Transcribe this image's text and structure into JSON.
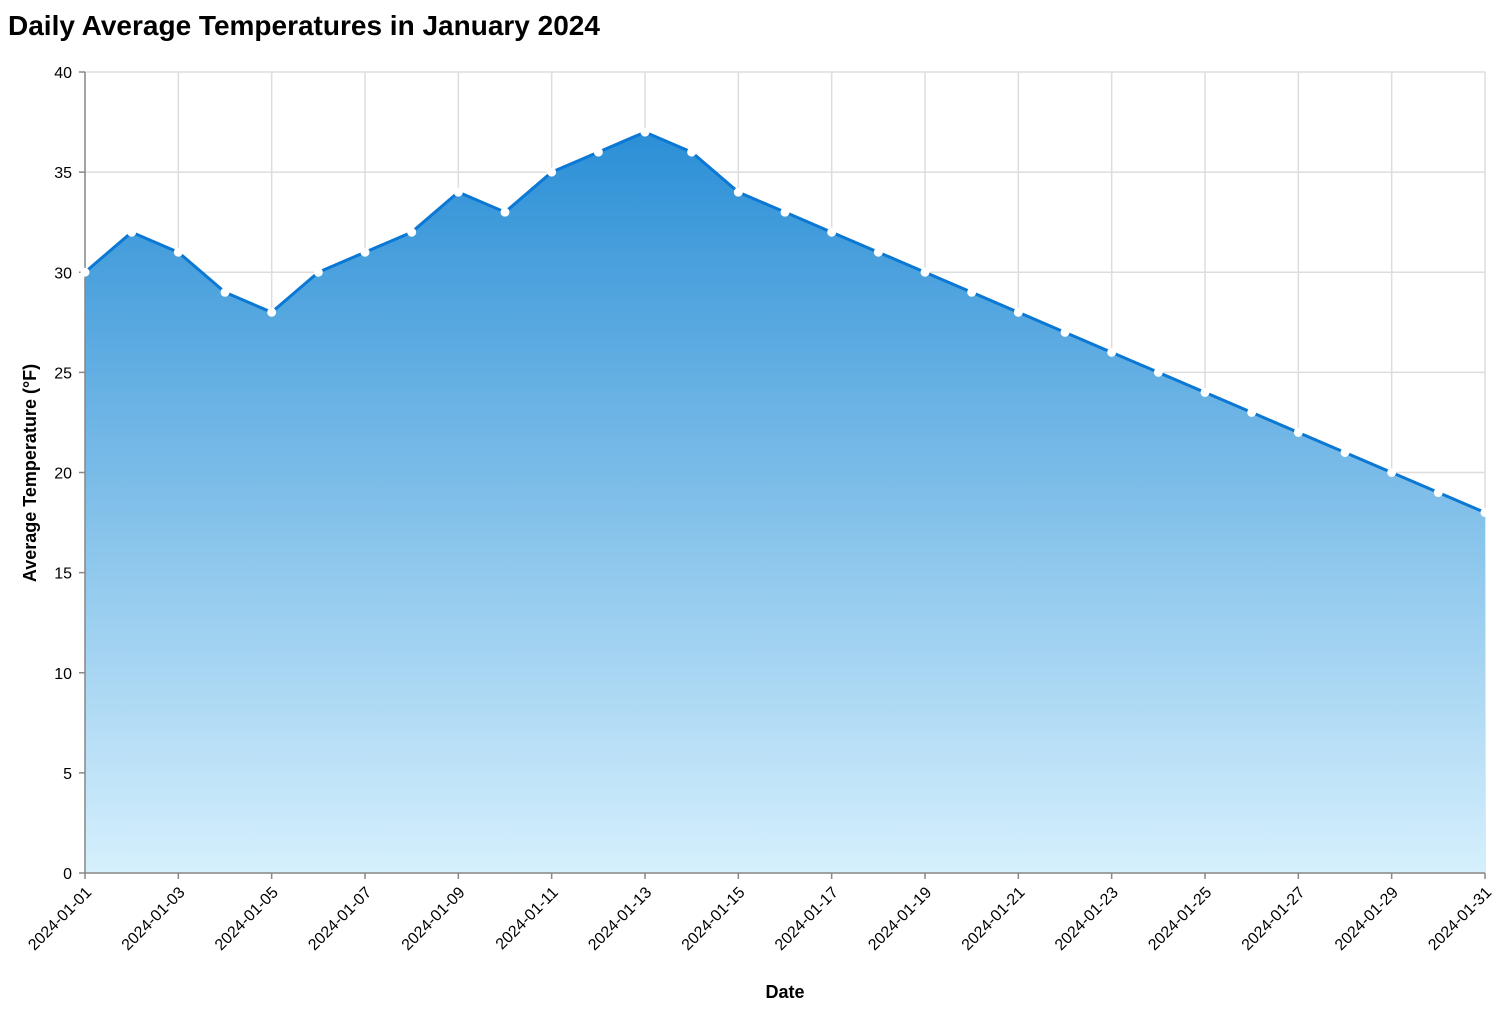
{
  "chart_data": {
    "type": "area",
    "title": "Daily Average Temperatures in January 2024",
    "xlabel": "Date",
    "ylabel": "Average Temperature (°F)",
    "ylim": [
      0,
      40
    ],
    "yticks": [
      0,
      5,
      10,
      15,
      20,
      25,
      30,
      35,
      40
    ],
    "xlim": [
      "2024-01-01",
      "2024-01-31"
    ],
    "xticks": [
      "2024-01-01",
      "2024-01-03",
      "2024-01-05",
      "2024-01-07",
      "2024-01-09",
      "2024-01-11",
      "2024-01-13",
      "2024-01-15",
      "2024-01-17",
      "2024-01-19",
      "2024-01-21",
      "2024-01-23",
      "2024-01-25",
      "2024-01-27",
      "2024-01-29",
      "2024-01-31"
    ],
    "grid": true,
    "colors": {
      "line": "#0a78d4",
      "fill_top": "#2b8fd6",
      "fill_bottom": "#d6f0fd",
      "point": "#ffffff"
    },
    "x": [
      "2024-01-01",
      "2024-01-02",
      "2024-01-03",
      "2024-01-04",
      "2024-01-05",
      "2024-01-06",
      "2024-01-07",
      "2024-01-08",
      "2024-01-09",
      "2024-01-10",
      "2024-01-11",
      "2024-01-12",
      "2024-01-13",
      "2024-01-14",
      "2024-01-15",
      "2024-01-16",
      "2024-01-17",
      "2024-01-18",
      "2024-01-19",
      "2024-01-20",
      "2024-01-21",
      "2024-01-22",
      "2024-01-23",
      "2024-01-24",
      "2024-01-25",
      "2024-01-26",
      "2024-01-27",
      "2024-01-28",
      "2024-01-29",
      "2024-01-30",
      "2024-01-31"
    ],
    "values": [
      30,
      32,
      31,
      29,
      28,
      30,
      31,
      32,
      34,
      33,
      35,
      36,
      37,
      36,
      34,
      33,
      32,
      31,
      30,
      29,
      28,
      27,
      26,
      25,
      24,
      23,
      22,
      21,
      20,
      19,
      18
    ]
  }
}
